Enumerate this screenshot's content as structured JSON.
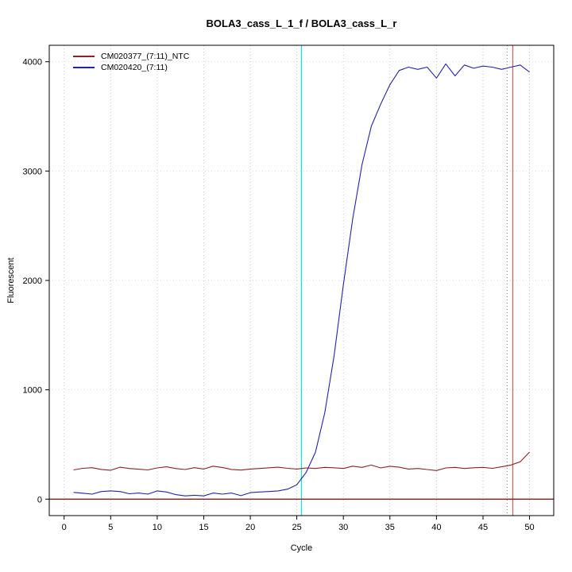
{
  "chart_data": {
    "type": "line",
    "title": "BOLA3_cass_L_1_f / BOLA3_cass_L_r",
    "xlabel": "Cycle",
    "ylabel": "Fluorescent",
    "xlim": [
      -1.6,
      52.6
    ],
    "ylim": [
      -150,
      4150
    ],
    "xticks": [
      0,
      5,
      10,
      15,
      20,
      25,
      30,
      35,
      40,
      45,
      50
    ],
    "yticks": [
      0,
      1000,
      2000,
      3000,
      4000
    ],
    "grid": "dotted gray at every tick, vertical and horizontal",
    "legend_position": "top-left-inside",
    "x": [
      1,
      2,
      3,
      4,
      5,
      6,
      7,
      8,
      9,
      10,
      11,
      12,
      13,
      14,
      15,
      16,
      17,
      18,
      19,
      20,
      21,
      22,
      23,
      24,
      25,
      26,
      27,
      28,
      29,
      30,
      31,
      32,
      33,
      34,
      35,
      36,
      37,
      38,
      39,
      40,
      41,
      42,
      43,
      44,
      45,
      46,
      47,
      48,
      49,
      50
    ],
    "series": [
      {
        "name": "CM020377_(7:11)_NTC",
        "color": "#8b2323",
        "values": [
          268,
          282,
          288,
          272,
          265,
          292,
          281,
          274,
          268,
          286,
          296,
          280,
          271,
          288,
          276,
          302,
          290,
          272,
          266,
          276,
          281,
          287,
          292,
          282,
          276,
          286,
          281,
          291,
          287,
          281,
          302,
          291,
          312,
          286,
          301,
          292,
          276,
          281,
          271,
          262,
          286,
          291,
          281,
          287,
          291,
          282,
          296,
          312,
          342,
          430
        ]
      },
      {
        "name": "CM020420_(7:11)",
        "color": "#2424a8",
        "values": [
          62,
          55,
          46,
          70,
          76,
          70,
          50,
          56,
          46,
          76,
          66,
          42,
          30,
          36,
          30,
          56,
          46,
          56,
          32,
          60,
          66,
          70,
          76,
          92,
          132,
          245,
          430,
          790,
          1310,
          1960,
          2560,
          3060,
          3410,
          3610,
          3790,
          3920,
          3950,
          3930,
          3950,
          3850,
          3980,
          3870,
          3970,
          3940,
          3960,
          3950,
          3930,
          3950,
          3970,
          3905
        ]
      }
    ],
    "vlines": [
      {
        "x": 25.5,
        "color": "#00e5ee",
        "style": "solid",
        "label": "threshold-cycle-line"
      },
      {
        "x": 47.6,
        "color": "#9a9a9a",
        "style": "dotted",
        "label": "marker-line-dotted"
      },
      {
        "x": 48.2,
        "color": "#cd5c5c",
        "style": "solid",
        "label": "marker-line-red"
      }
    ],
    "hlines": [
      {
        "y": 0,
        "color": "#8b1a1a",
        "style": "solid",
        "label": "zero-baseline"
      }
    ]
  }
}
